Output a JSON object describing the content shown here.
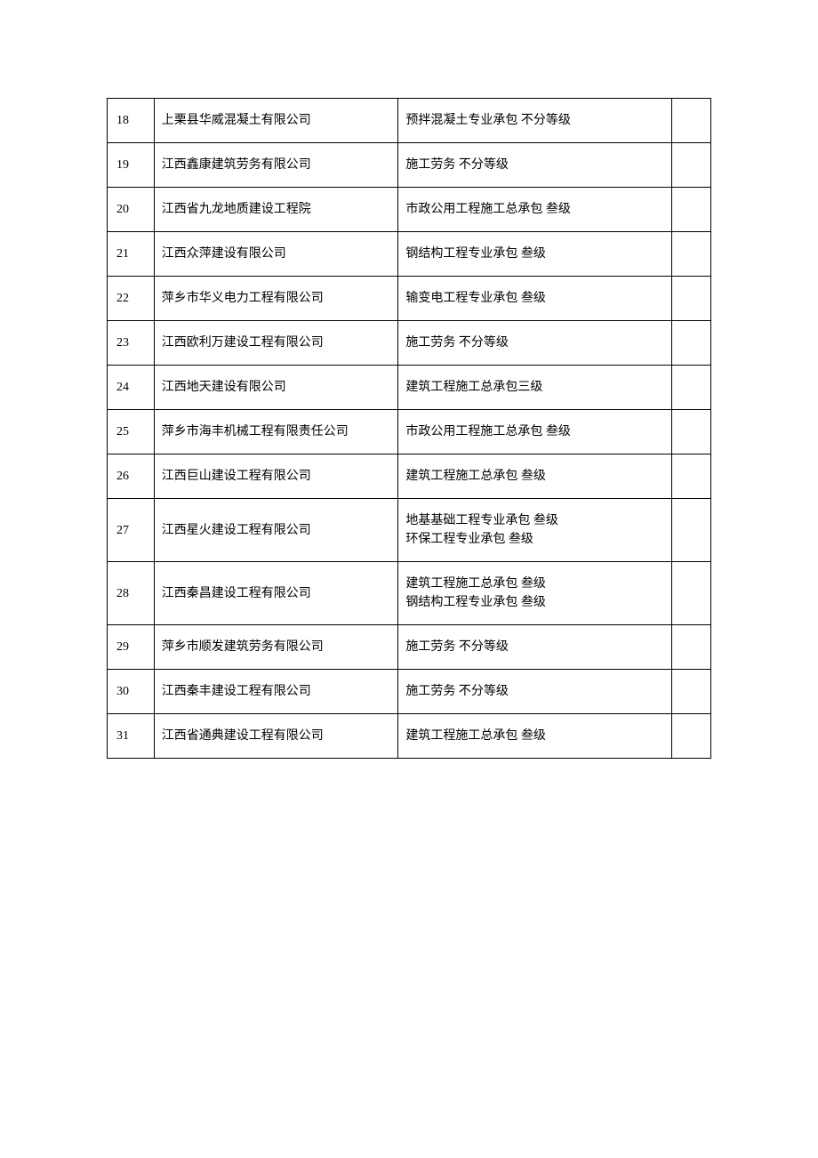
{
  "table": {
    "columns": [
      {
        "key": "num",
        "class": "col-num"
      },
      {
        "key": "company",
        "class": "col-company"
      },
      {
        "key": "qualification",
        "class": "col-qualification"
      },
      {
        "key": "note",
        "class": "col-note"
      }
    ],
    "rows": [
      {
        "num": "18",
        "company": "上栗县华威混凝土有限公司",
        "qualification": "预拌混凝土专业承包 不分等级",
        "note": ""
      },
      {
        "num": "19",
        "company": "江西鑫康建筑劳务有限公司",
        "qualification": "施工劳务 不分等级",
        "note": ""
      },
      {
        "num": "20",
        "company": "江西省九龙地质建设工程院",
        "qualification": "市政公用工程施工总承包 叁级",
        "note": ""
      },
      {
        "num": "21",
        "company": "江西众萍建设有限公司",
        "qualification": "钢结构工程专业承包 叁级",
        "note": ""
      },
      {
        "num": "22",
        "company": "萍乡市华义电力工程有限公司",
        "qualification": "输变电工程专业承包 叁级",
        "note": ""
      },
      {
        "num": "23",
        "company": "江西欧利万建设工程有限公司",
        "qualification": "施工劳务 不分等级",
        "note": ""
      },
      {
        "num": "24",
        "company": "江西地天建设有限公司",
        "qualification": "建筑工程施工总承包三级",
        "note": ""
      },
      {
        "num": "25",
        "company": "萍乡市海丰机械工程有限责任公司",
        "qualification": "市政公用工程施工总承包 叁级",
        "note": ""
      },
      {
        "num": "26",
        "company": "江西巨山建设工程有限公司",
        "qualification": "建筑工程施工总承包 叁级",
        "note": ""
      },
      {
        "num": "27",
        "company": "江西星火建设工程有限公司",
        "qualification": "地基基础工程专业承包 叁级\n环保工程专业承包 叁级",
        "note": ""
      },
      {
        "num": "28",
        "company": "江西秦昌建设工程有限公司",
        "qualification": "建筑工程施工总承包 叁级\n钢结构工程专业承包 叁级",
        "note": ""
      },
      {
        "num": "29",
        "company": "萍乡市顺发建筑劳务有限公司",
        "qualification": "施工劳务 不分等级",
        "note": ""
      },
      {
        "num": "30",
        "company": "江西秦丰建设工程有限公司",
        "qualification": "施工劳务 不分等级",
        "note": ""
      },
      {
        "num": "31",
        "company": "江西省通典建设工程有限公司",
        "qualification": "建筑工程施工总承包 叁级",
        "note": ""
      }
    ],
    "border_color": "#000000",
    "background_color": "#ffffff",
    "text_color": "#000000",
    "font_size": 14
  }
}
